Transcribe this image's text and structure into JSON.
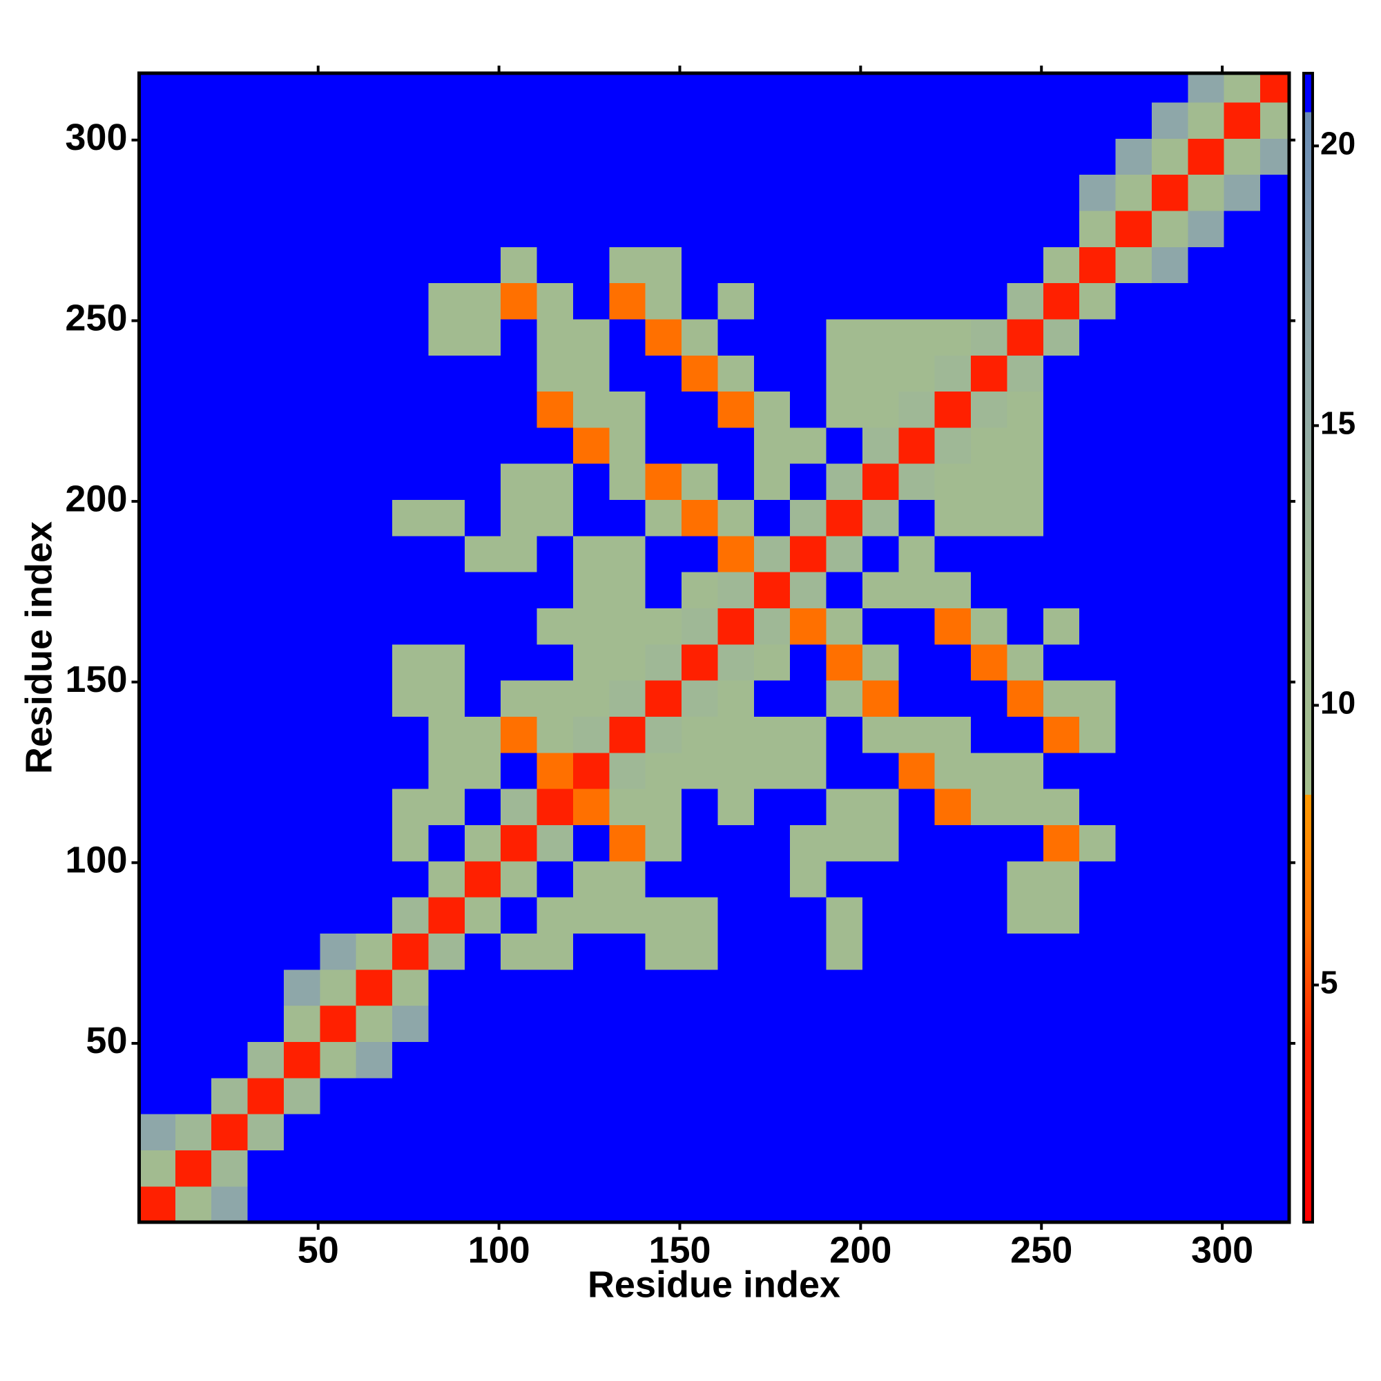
{
  "chart_data": {
    "type": "heatmap",
    "x_label": "Residue index",
    "y_label": "Residue index",
    "xlim": [
      0.5,
      318.5
    ],
    "ylim": [
      0.5,
      318.5
    ],
    "xticks": [
      50,
      100,
      150,
      200,
      250,
      300
    ],
    "yticks": [
      50,
      100,
      150,
      200,
      250,
      300
    ],
    "zlim": [
      0.76,
      21.3
    ],
    "zticks": [
      5,
      10,
      15,
      20
    ],
    "colorscale": [
      [
        0.76,
        "#ff0000"
      ],
      [
        4,
        "#ff2200"
      ],
      [
        6,
        "#ff7000"
      ],
      [
        8.4,
        "#ff9900"
      ],
      [
        8.4,
        "#a4be8c"
      ],
      [
        12,
        "#9fb896"
      ],
      [
        17,
        "#8aa3ae"
      ],
      [
        20.6,
        "#6a8cb4"
      ],
      [
        20.6,
        "#0000ff"
      ],
      [
        21.3,
        "#0000ff"
      ]
    ],
    "bins": [
      0.5,
      10.5,
      20.5,
      30.5,
      40.5,
      50.5,
      60.5,
      70.5,
      80.5,
      90.5,
      100.5,
      110.5,
      120.5,
      130.5,
      140.5,
      150.5,
      160.5,
      170.5,
      180.5,
      190.5,
      200.5,
      210.5,
      220.5,
      230.5,
      240.5,
      250.5,
      260.5,
      270.5,
      280.5,
      290.5,
      300.5,
      310.5,
      318.5
    ],
    "z": [
      [
        3.8,
        10,
        16,
        21,
        21,
        21,
        21,
        21,
        21,
        21,
        21,
        21,
        21,
        21,
        21,
        21,
        21,
        21,
        21,
        21,
        21,
        21,
        21,
        21,
        21,
        21,
        21,
        21,
        21,
        21,
        21,
        21
      ],
      [
        10,
        3.8,
        12,
        21,
        21,
        21,
        21,
        21,
        21,
        21,
        21,
        21,
        21,
        21,
        21,
        21,
        21,
        21,
        21,
        21,
        21,
        21,
        21,
        21,
        21,
        21,
        21,
        21,
        21,
        21,
        21,
        21
      ],
      [
        16,
        12,
        3.8,
        12,
        21,
        21,
        21,
        21,
        21,
        21,
        21,
        21,
        21,
        21,
        21,
        21,
        21,
        21,
        21,
        21,
        21,
        21,
        21,
        21,
        21,
        21,
        21,
        21,
        21,
        21,
        21,
        21
      ],
      [
        21,
        21,
        12,
        3.8,
        12,
        21,
        21,
        21,
        21,
        21,
        21,
        21,
        21,
        21,
        21,
        21,
        21,
        21,
        21,
        21,
        21,
        21,
        21,
        21,
        21,
        21,
        21,
        21,
        21,
        21,
        21,
        21
      ],
      [
        21,
        21,
        21,
        12,
        3.8,
        10,
        16,
        21,
        21,
        21,
        21,
        21,
        21,
        21,
        21,
        21,
        21,
        21,
        21,
        21,
        21,
        21,
        21,
        21,
        21,
        21,
        21,
        21,
        21,
        21,
        21,
        21
      ],
      [
        21,
        21,
        21,
        21,
        10,
        3.8,
        10,
        16,
        21,
        21,
        21,
        21,
        21,
        21,
        21,
        21,
        21,
        21,
        21,
        21,
        21,
        21,
        21,
        21,
        21,
        21,
        21,
        21,
        21,
        21,
        21,
        21
      ],
      [
        21,
        21,
        21,
        21,
        16,
        10,
        3.8,
        10,
        21,
        21,
        21,
        21,
        21,
        21,
        21,
        21,
        21,
        21,
        21,
        21,
        21,
        21,
        21,
        21,
        21,
        21,
        21,
        21,
        21,
        21,
        21,
        21
      ],
      [
        21,
        21,
        21,
        21,
        21,
        16,
        10,
        3.8,
        12,
        21,
        10,
        10,
        21,
        21,
        10,
        10,
        21,
        21,
        21,
        10,
        21,
        21,
        21,
        21,
        21,
        21,
        21,
        21,
        21,
        21,
        21,
        21
      ],
      [
        21,
        21,
        21,
        21,
        21,
        21,
        21,
        12,
        3.8,
        10,
        21,
        10,
        10,
        10,
        10,
        10,
        21,
        21,
        21,
        10,
        21,
        21,
        21,
        21,
        10,
        10,
        21,
        21,
        21,
        21,
        21,
        21
      ],
      [
        21,
        21,
        21,
        21,
        21,
        21,
        21,
        21,
        10,
        3.8,
        10,
        21,
        10,
        10,
        21,
        21,
        21,
        21,
        10,
        21,
        21,
        21,
        21,
        21,
        10,
        10,
        21,
        21,
        21,
        21,
        21,
        21
      ],
      [
        21,
        21,
        21,
        21,
        21,
        21,
        21,
        10,
        21,
        10,
        3.8,
        12,
        21,
        6,
        10,
        21,
        21,
        21,
        10,
        10,
        10,
        21,
        21,
        21,
        21,
        6,
        10,
        21,
        21,
        21,
        21,
        21
      ],
      [
        21,
        21,
        21,
        21,
        21,
        21,
        21,
        10,
        10,
        21,
        12,
        3.8,
        6,
        10,
        10,
        21,
        10,
        21,
        21,
        10,
        10,
        21,
        6,
        10,
        10,
        10,
        21,
        21,
        21,
        21,
        21,
        21
      ],
      [
        21,
        21,
        21,
        21,
        21,
        21,
        21,
        21,
        10,
        10,
        21,
        6,
        3.8,
        12,
        10,
        10,
        10,
        10,
        10,
        21,
        21,
        6,
        10,
        10,
        10,
        21,
        21,
        21,
        21,
        21,
        21,
        21
      ],
      [
        21,
        21,
        21,
        21,
        21,
        21,
        21,
        21,
        10,
        10,
        6,
        10,
        12,
        3.8,
        12,
        10,
        10,
        10,
        10,
        21,
        10,
        10,
        10,
        21,
        21,
        6,
        10,
        21,
        21,
        21,
        21,
        21
      ],
      [
        21,
        21,
        21,
        21,
        21,
        21,
        21,
        10,
        10,
        21,
        10,
        10,
        10,
        12,
        3.8,
        12,
        10,
        21,
        21,
        10,
        6,
        21,
        21,
        21,
        6,
        10,
        10,
        21,
        21,
        21,
        21,
        21
      ],
      [
        21,
        21,
        21,
        21,
        21,
        21,
        21,
        10,
        10,
        21,
        21,
        21,
        10,
        10,
        12,
        3.8,
        12,
        10,
        21,
        6,
        10,
        21,
        21,
        6,
        10,
        21,
        21,
        21,
        21,
        21,
        21,
        21
      ],
      [
        21,
        21,
        21,
        21,
        21,
        21,
        21,
        21,
        21,
        21,
        21,
        10,
        10,
        10,
        10,
        12,
        3.8,
        12,
        6,
        10,
        21,
        21,
        6,
        10,
        21,
        10,
        21,
        21,
        21,
        21,
        21,
        21
      ],
      [
        21,
        21,
        21,
        21,
        21,
        21,
        21,
        21,
        21,
        21,
        21,
        21,
        10,
        10,
        21,
        10,
        12,
        3.8,
        12,
        21,
        10,
        10,
        10,
        21,
        21,
        21,
        21,
        21,
        21,
        21,
        21,
        21
      ],
      [
        21,
        21,
        21,
        21,
        21,
        21,
        21,
        21,
        21,
        10,
        10,
        21,
        10,
        10,
        21,
        21,
        6,
        12,
        3.8,
        12,
        21,
        10,
        21,
        21,
        21,
        21,
        21,
        21,
        21,
        21,
        21,
        21
      ],
      [
        21,
        21,
        21,
        21,
        21,
        21,
        21,
        10,
        10,
        21,
        10,
        10,
        21,
        21,
        10,
        6,
        10,
        21,
        12,
        3.8,
        12,
        21,
        10,
        10,
        10,
        21,
        21,
        21,
        21,
        21,
        21,
        21
      ],
      [
        21,
        21,
        21,
        21,
        21,
        21,
        21,
        21,
        21,
        21,
        10,
        10,
        21,
        10,
        6,
        10,
        21,
        10,
        21,
        12,
        3.8,
        12,
        10,
        10,
        10,
        21,
        21,
        21,
        21,
        21,
        21,
        21
      ],
      [
        21,
        21,
        21,
        21,
        21,
        21,
        21,
        21,
        21,
        21,
        21,
        21,
        6,
        10,
        21,
        21,
        21,
        10,
        10,
        21,
        12,
        3.8,
        12,
        10,
        10,
        21,
        21,
        21,
        21,
        21,
        21,
        21
      ],
      [
        21,
        21,
        21,
        21,
        21,
        21,
        21,
        21,
        21,
        21,
        21,
        6,
        10,
        10,
        21,
        21,
        6,
        10,
        21,
        10,
        10,
        12,
        3.8,
        12,
        10,
        21,
        21,
        21,
        21,
        21,
        21,
        21
      ],
      [
        21,
        21,
        21,
        21,
        21,
        21,
        21,
        21,
        21,
        21,
        21,
        10,
        10,
        21,
        21,
        6,
        10,
        21,
        21,
        10,
        10,
        10,
        12,
        3.8,
        12,
        21,
        21,
        21,
        21,
        21,
        21,
        21
      ],
      [
        21,
        21,
        21,
        21,
        21,
        21,
        21,
        21,
        10,
        10,
        21,
        10,
        10,
        21,
        6,
        10,
        21,
        21,
        21,
        10,
        10,
        10,
        10,
        12,
        3.8,
        12,
        21,
        21,
        21,
        21,
        21,
        21
      ],
      [
        21,
        21,
        21,
        21,
        21,
        21,
        21,
        21,
        10,
        10,
        6,
        10,
        21,
        6,
        10,
        21,
        10,
        21,
        21,
        21,
        21,
        21,
        21,
        21,
        12,
        3.8,
        10,
        21,
        21,
        21,
        21,
        21
      ],
      [
        21,
        21,
        21,
        21,
        21,
        21,
        21,
        21,
        21,
        21,
        10,
        21,
        21,
        10,
        10,
        21,
        21,
        21,
        21,
        21,
        21,
        21,
        21,
        21,
        21,
        10,
        3.8,
        10,
        16,
        21,
        21,
        21
      ],
      [
        21,
        21,
        21,
        21,
        21,
        21,
        21,
        21,
        21,
        21,
        21,
        21,
        21,
        21,
        21,
        21,
        21,
        21,
        21,
        21,
        21,
        21,
        21,
        21,
        21,
        21,
        10,
        3.8,
        10,
        16,
        21,
        21
      ],
      [
        21,
        21,
        21,
        21,
        21,
        21,
        21,
        21,
        21,
        21,
        21,
        21,
        21,
        21,
        21,
        21,
        21,
        21,
        21,
        21,
        21,
        21,
        21,
        21,
        21,
        21,
        16,
        10,
        3.8,
        10,
        16,
        21
      ],
      [
        21,
        21,
        21,
        21,
        21,
        21,
        21,
        21,
        21,
        21,
        21,
        21,
        21,
        21,
        21,
        21,
        21,
        21,
        21,
        21,
        21,
        21,
        21,
        21,
        21,
        21,
        21,
        16,
        10,
        3.8,
        10,
        16
      ],
      [
        21,
        21,
        21,
        21,
        21,
        21,
        21,
        21,
        21,
        21,
        21,
        21,
        21,
        21,
        21,
        21,
        21,
        21,
        21,
        21,
        21,
        21,
        21,
        21,
        21,
        21,
        21,
        21,
        16,
        10,
        3.8,
        10
      ],
      [
        21,
        21,
        21,
        21,
        21,
        21,
        21,
        21,
        21,
        21,
        21,
        21,
        21,
        21,
        21,
        21,
        21,
        21,
        21,
        21,
        21,
        21,
        21,
        21,
        21,
        21,
        21,
        21,
        21,
        16,
        10,
        3.8
      ]
    ]
  }
}
